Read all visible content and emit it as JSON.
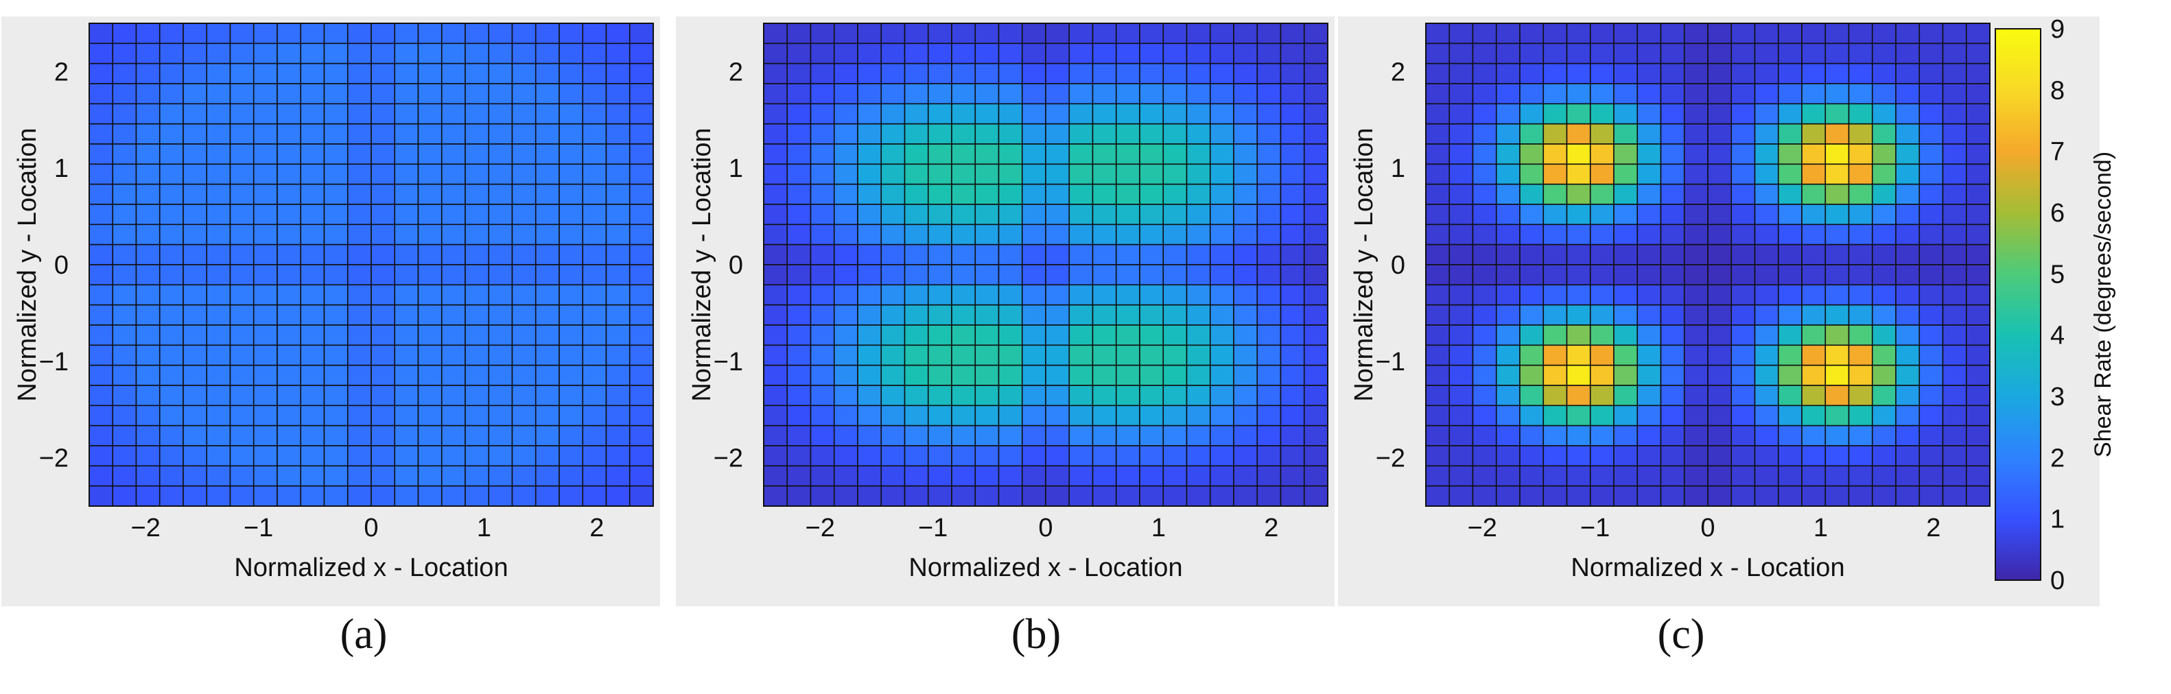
{
  "chart_data": [
    {
      "type": "heatmap",
      "panel_label": "(a)",
      "xlabel": "Normalized x - Location",
      "ylabel": "Normalized y - Location",
      "xlim": [
        -2.5,
        2.5
      ],
      "ylim": [
        -2.5,
        2.5
      ],
      "xticks": [
        -2,
        -1,
        0,
        1,
        2
      ],
      "yticks": [
        -2,
        -1,
        0,
        1,
        2
      ],
      "tick_labels": [
        "−2",
        "−1",
        "0",
        "1",
        "2"
      ],
      "grid_cells": 24,
      "cell_centers": [
        1.0,
        1.0
      ],
      "cell_spreads": [
        1.3,
        1.3
      ],
      "peak_value": 1.9,
      "base_value": 0.3,
      "cross_dip": 0.25
    },
    {
      "type": "heatmap",
      "panel_label": "(b)",
      "xlabel": "Normalized x - Location",
      "ylabel": "Normalized y - Location",
      "xlim": [
        -2.5,
        2.5
      ],
      "ylim": [
        -2.5,
        2.5
      ],
      "xticks": [
        -2,
        -1,
        0,
        1,
        2
      ],
      "yticks": [
        -2,
        -1,
        0,
        1,
        2
      ],
      "tick_labels": [
        "−2",
        "−1",
        "0",
        "1",
        "2"
      ],
      "grid_cells": 24,
      "cell_centers": [
        0.9,
        1.0
      ],
      "cell_spreads": [
        0.75,
        0.6
      ],
      "peak_value": 4.2,
      "base_value": 0.4,
      "cross_dip": 0.45
    },
    {
      "type": "heatmap",
      "panel_label": "(c)",
      "xlabel": "Normalized x - Location",
      "ylabel": "Normalized y - Location",
      "xlim": [
        -2.5,
        2.5
      ],
      "ylim": [
        -2.5,
        2.5
      ],
      "xticks": [
        -2,
        -1,
        0,
        1,
        2
      ],
      "yticks": [
        -2,
        -1,
        0,
        1,
        2
      ],
      "tick_labels": [
        "−2",
        "−1",
        "0",
        "1",
        "2"
      ],
      "grid_cells": 24,
      "cell_centers": [
        1.15,
        1.1
      ],
      "cell_spreads": [
        0.42,
        0.38
      ],
      "peak_value": 8.6,
      "base_value": 0.5,
      "cross_dip": 0.6
    }
  ],
  "colorbar": {
    "label": "Shear Rate (degrees/second)",
    "min": 0,
    "max": 9,
    "ticks": [
      "0",
      "1",
      "2",
      "3",
      "4",
      "5",
      "6",
      "7",
      "8",
      "9"
    ],
    "colormap": [
      "#3e26a8",
      "#3651ff",
      "#2f82ff",
      "#1aa8e0",
      "#19c1b3",
      "#4dcb7a",
      "#a4bd35",
      "#f5a92b",
      "#f8d926",
      "#f9fb0e"
    ]
  }
}
